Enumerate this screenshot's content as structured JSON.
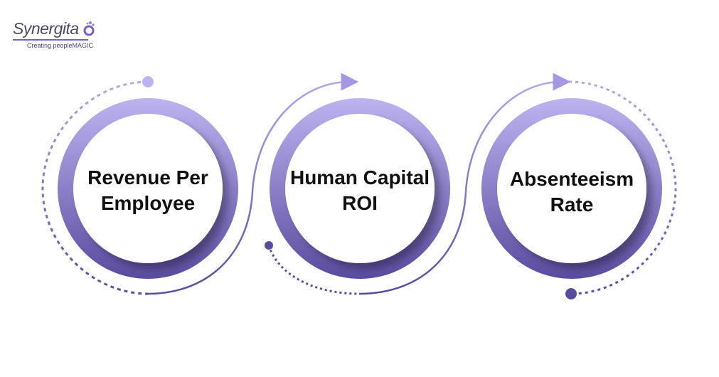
{
  "logo": {
    "name": "Synergita",
    "tagline": "Creating peopleMAGIC"
  },
  "colors": {
    "ring_top": "#bdb3f0",
    "ring_bottom": "#5b4b9f",
    "connector": "#6a5ab0"
  },
  "steps": [
    {
      "label": "Revenue Per Employee"
    },
    {
      "label": "Human Capital ROI"
    },
    {
      "label": "Absenteeism Rate"
    }
  ]
}
